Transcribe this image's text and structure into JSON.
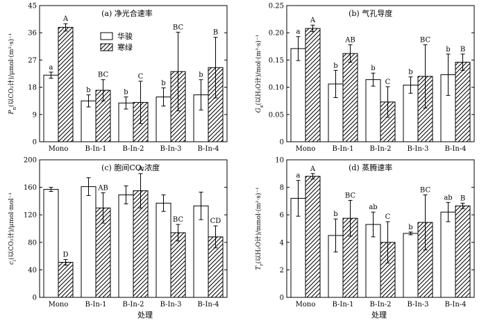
{
  "figure": {
    "x_axis_title": "处理",
    "legend": [
      {
        "label": "华骏",
        "pattern": "solid-white"
      },
      {
        "label": "寒绿",
        "pattern": "diagonal-hatch"
      }
    ]
  },
  "chart_data": [
    {
      "type": "bar",
      "title": "(a) 净光合速率",
      "ylabel": "P_n(以CO₂计)/μmol·(m²·s)⁻¹",
      "ylim": [
        0,
        45
      ],
      "yticks": [
        0,
        9,
        18,
        27,
        36,
        45
      ],
      "categories": [
        "Mono",
        "B-In-1",
        "B-In-2",
        "B-In-3",
        "B-In-4"
      ],
      "series": [
        {
          "name": "华骏",
          "values": [
            22.0,
            13.5,
            12.8,
            14.8,
            15.5
          ],
          "errors": [
            1.0,
            2.0,
            2.0,
            3.0,
            5.0
          ],
          "labels": [
            "a",
            "b",
            "b",
            "b",
            "b"
          ]
        },
        {
          "name": "寒绿",
          "values": [
            37.8,
            17.0,
            13.0,
            23.2,
            24.5
          ],
          "errors": [
            1.2,
            3.5,
            7.0,
            13.0,
            10.0
          ],
          "labels": [
            "A",
            "BC",
            "C",
            "BC",
            "B"
          ]
        }
      ]
    },
    {
      "type": "bar",
      "title": "(b) 气孔导度",
      "ylabel": "G_s(以H₂O计)/mol·(m²·s)⁻¹",
      "ylim": [
        0,
        0.25
      ],
      "yticks": [
        0,
        0.05,
        0.1,
        0.15,
        0.2,
        0.25
      ],
      "yticklabels": [
        "0",
        "0.05",
        "0.10",
        "0.15",
        "0.20",
        "0.25"
      ],
      "categories": [
        "Mono",
        "B-In-1",
        "B-In-2",
        "B-In-3",
        "B-In-4"
      ],
      "series": [
        {
          "name": "华骏",
          "values": [
            0.171,
            0.106,
            0.114,
            0.104,
            0.123
          ],
          "errors": [
            0.022,
            0.025,
            0.012,
            0.015,
            0.038
          ],
          "labels": [
            "a",
            "b",
            "b",
            "b",
            "b"
          ]
        },
        {
          "name": "寒绿",
          "values": [
            0.208,
            0.162,
            0.073,
            0.12,
            0.146
          ],
          "errors": [
            0.006,
            0.016,
            0.028,
            0.058,
            0.015
          ],
          "labels": [
            "A",
            "AB",
            "C",
            "BC",
            "B"
          ]
        }
      ]
    },
    {
      "type": "bar",
      "title": "(c) 胞间CO₂浓度",
      "ylabel": "c_i(以CO₂计)/μmol·mol⁻¹",
      "ylim": [
        0,
        200
      ],
      "yticks": [
        0,
        40,
        80,
        120,
        160,
        200
      ],
      "categories": [
        "Mono",
        "B-In-1",
        "B-In-2",
        "B-In-3",
        "B-In-4"
      ],
      "series": [
        {
          "name": "华骏",
          "values": [
            157,
            161,
            149,
            137,
            133
          ],
          "errors": [
            3,
            13,
            13,
            12,
            20
          ],
          "labels": [
            "",
            "",
            "",
            "",
            ""
          ]
        },
        {
          "name": "寒绿",
          "values": [
            51,
            130,
            155,
            94,
            88
          ],
          "errors": [
            4,
            22,
            25,
            12,
            16
          ],
          "labels": [
            "D",
            "AB",
            "A",
            "BC",
            "CD"
          ]
        }
      ]
    },
    {
      "type": "bar",
      "title": "(d) 蒸腾速率",
      "ylabel": "T_r(以H₂O计)/mmol·(m²·s)⁻¹",
      "ylim": [
        0,
        10
      ],
      "yticks": [
        0,
        2,
        4,
        6,
        8,
        10
      ],
      "categories": [
        "Mono",
        "B-In-1",
        "B-In-2",
        "B-In-3",
        "B-In-4"
      ],
      "series": [
        {
          "name": "华骏",
          "values": [
            7.2,
            4.5,
            5.3,
            4.65,
            6.2
          ],
          "errors": [
            1.3,
            1.2,
            0.9,
            0.1,
            0.7
          ],
          "labels": [
            "a",
            "b",
            "ab",
            "b",
            "ab"
          ]
        },
        {
          "name": "寒绿",
          "values": [
            8.8,
            5.75,
            4.0,
            5.45,
            6.65
          ],
          "errors": [
            0.2,
            1.3,
            1.5,
            2.0,
            0.2
          ],
          "labels": [
            "A",
            "BC",
            "C",
            "BC",
            "B"
          ]
        }
      ]
    }
  ]
}
